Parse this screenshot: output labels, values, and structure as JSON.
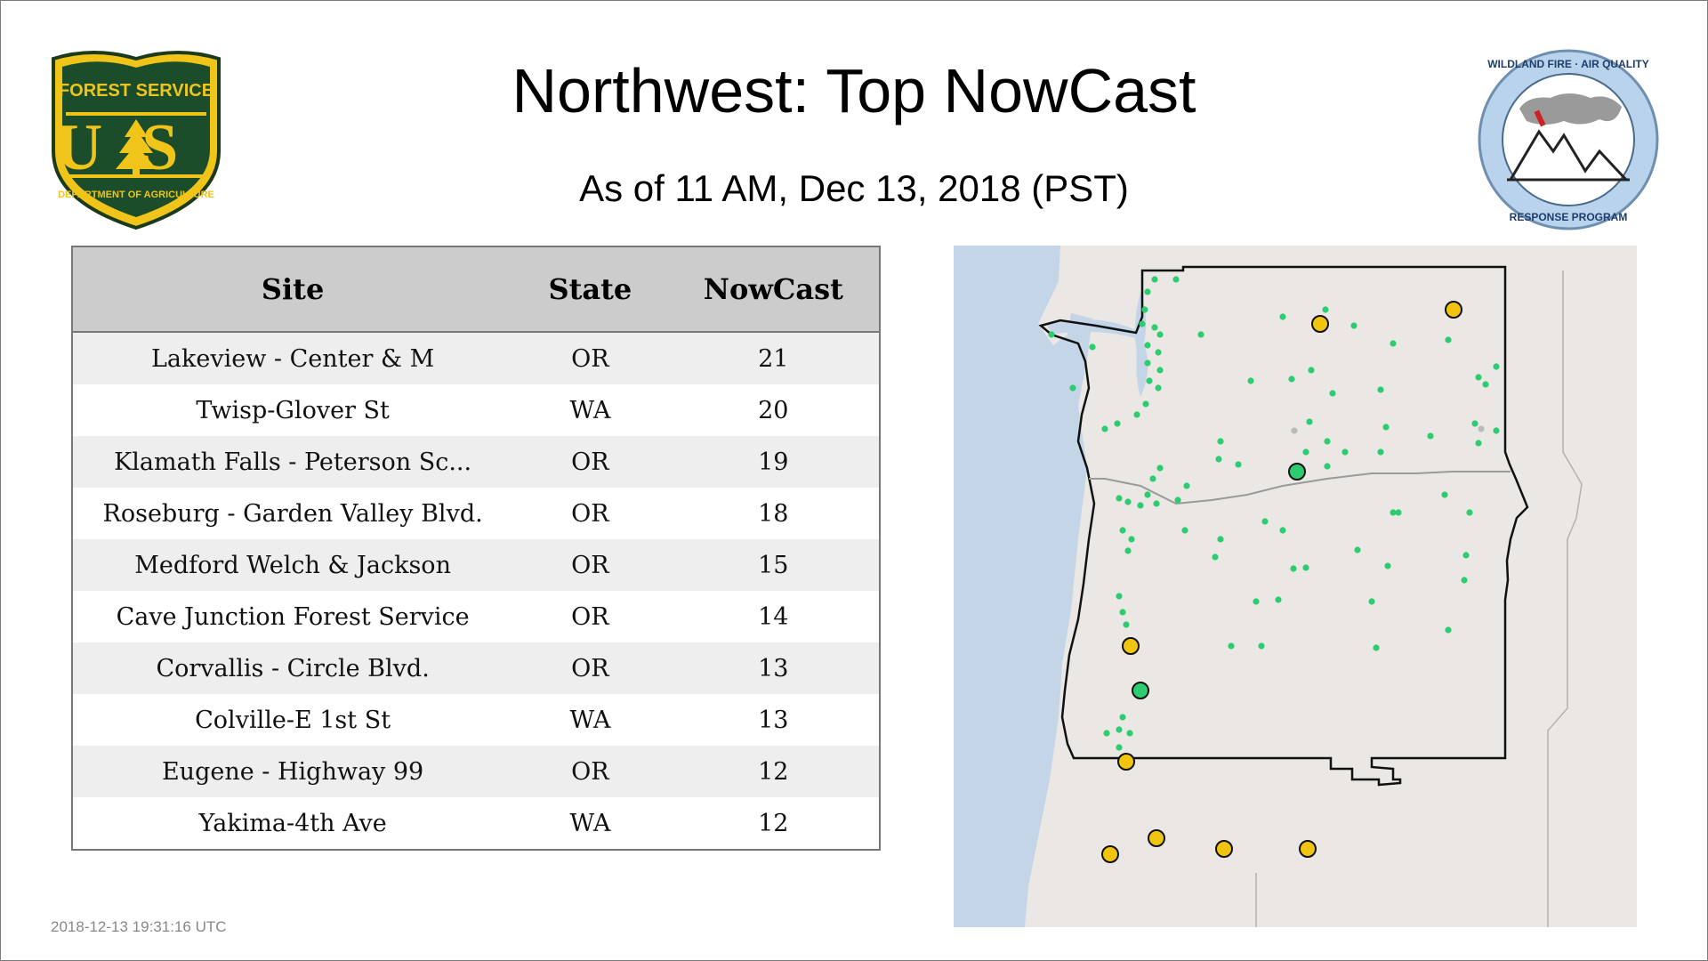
{
  "header": {
    "title": "Northwest: Top NowCast",
    "subtitle": "As of 11 AM, Dec 13, 2018 (PST)"
  },
  "logos": {
    "forest_service": {
      "top": "FOREST SERVICE",
      "initials": "US",
      "bottom": "DEPARTMENT OF AGRICULTURE"
    },
    "wildland_fire": {
      "top": "WILDLAND FIRE · AIR QUALITY",
      "bottom": "RESPONSE PROGRAM"
    }
  },
  "table": {
    "headers": [
      "Site",
      "State",
      "NowCast"
    ],
    "rows": [
      {
        "site": "Lakeview - Center & M",
        "state": "OR",
        "nowcast": "21"
      },
      {
        "site": "Twisp-Glover St",
        "state": "WA",
        "nowcast": "20"
      },
      {
        "site": "Klamath Falls - Peterson Sc...",
        "state": "OR",
        "nowcast": "19"
      },
      {
        "site": "Roseburg - Garden Valley Blvd.",
        "state": "OR",
        "nowcast": "18"
      },
      {
        "site": "Medford Welch & Jackson",
        "state": "OR",
        "nowcast": "15"
      },
      {
        "site": "Cave Junction Forest Service",
        "state": "OR",
        "nowcast": "14"
      },
      {
        "site": "Corvallis - Circle Blvd.",
        "state": "OR",
        "nowcast": "13"
      },
      {
        "site": "Colville-E 1st St",
        "state": "WA",
        "nowcast": "13"
      },
      {
        "site": "Eugene - Highway 99",
        "state": "OR",
        "nowcast": "12"
      },
      {
        "site": "Yakima-4th Ave",
        "state": "WA",
        "nowcast": "12"
      }
    ]
  },
  "map": {
    "colors": {
      "ocean": "#c3d5e6",
      "land": "#ece8e6",
      "border": "#111111",
      "good_marker": "#2ecc71",
      "moderate_marker": "#f1c40f",
      "missing_marker": "#bbbbbb"
    }
  },
  "footer": {
    "timestamp": "2018-12-13 19:31:16 UTC"
  }
}
